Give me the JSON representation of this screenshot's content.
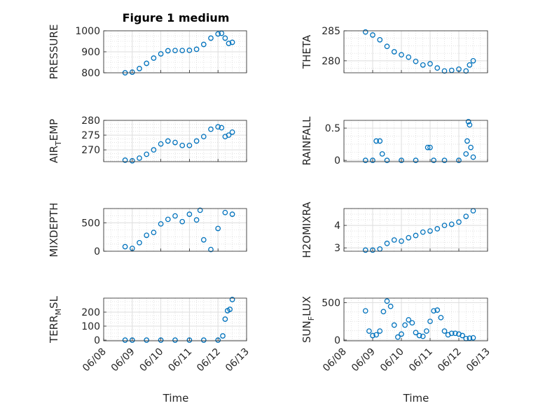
{
  "figure": {
    "title": "Figure 1 medium",
    "x_label_left": "Time",
    "x_label_right": "Time",
    "date_ticks": [
      "06/08",
      "06/09",
      "06/10",
      "06/11",
      "06/12",
      "06/13"
    ],
    "marker_color": "#0072BD",
    "grid": "on (major and minor)"
  },
  "chart_data": [
    {
      "type": "scatter",
      "id": "pressure",
      "ylabel": "PRESSURE",
      "ylabel_main": "PRESSURE",
      "ylabel_sub": "",
      "ylabel_tail": "",
      "ylim": [
        800,
        1000
      ],
      "yticks": [
        800,
        900,
        1000
      ],
      "xlim": [
        "06/08",
        "06/13"
      ],
      "x": [
        "06/08 18:00",
        "06/09 00:00",
        "06/09 06:00",
        "06/09 12:00",
        "06/09 18:00",
        "06/10 00:00",
        "06/10 06:00",
        "06/10 12:00",
        "06/10 18:00",
        "06/11 00:00",
        "06/11 06:00",
        "06/11 12:00",
        "06/11 18:00",
        "06/12 00:00",
        "06/12 03:00",
        "06/12 06:00",
        "06/12 09:00",
        "06/12 12:00"
      ],
      "y": [
        800,
        803,
        820,
        845,
        870,
        890,
        905,
        906,
        906,
        907,
        912,
        935,
        965,
        985,
        988,
        965,
        940,
        945
      ]
    },
    {
      "type": "scatter",
      "id": "theta",
      "ylabel": "THETA",
      "ylabel_main": "THETA",
      "ylabel_sub": "",
      "ylabel_tail": "",
      "ylim": [
        278,
        285
      ],
      "yticks": [
        280,
        285
      ],
      "xlim": [
        "06/08",
        "06/13"
      ],
      "x": [
        "06/08 18:00",
        "06/09 00:00",
        "06/09 06:00",
        "06/09 12:00",
        "06/09 18:00",
        "06/10 00:00",
        "06/10 06:00",
        "06/10 12:00",
        "06/10 18:00",
        "06/11 00:00",
        "06/11 06:00",
        "06/11 12:00",
        "06/11 18:00",
        "06/12 00:00",
        "06/12 06:00",
        "06/12 09:00",
        "06/12 12:00"
      ],
      "y": [
        284.8,
        284.3,
        283.5,
        282.4,
        281.5,
        281.0,
        280.6,
        279.9,
        279.3,
        279.5,
        278.8,
        278.3,
        278.4,
        278.6,
        278.3,
        279.3,
        280.0
      ]
    },
    {
      "type": "scatter",
      "id": "air-temp",
      "ylabel": "AIR_TEMP",
      "ylabel_main": "AIR",
      "ylabel_sub": "T",
      "ylabel_tail": "EMP",
      "ylim": [
        266,
        280
      ],
      "yticks": [
        270,
        275,
        280
      ],
      "xlim": [
        "06/08",
        "06/13"
      ],
      "x": [
        "06/08 18:00",
        "06/09 00:00",
        "06/09 06:00",
        "06/09 12:00",
        "06/09 18:00",
        "06/10 00:00",
        "06/10 06:00",
        "06/10 12:00",
        "06/10 18:00",
        "06/11 00:00",
        "06/11 06:00",
        "06/11 12:00",
        "06/11 18:00",
        "06/12 00:00",
        "06/12 03:00",
        "06/12 06:00",
        "06/12 09:00",
        "06/12 12:00"
      ],
      "y": [
        266.5,
        266.3,
        267.2,
        268.5,
        270.0,
        272.0,
        273.0,
        272.5,
        271.5,
        271.5,
        273.0,
        274.5,
        277.0,
        277.8,
        277.5,
        274.5,
        275.0,
        276.0
      ]
    },
    {
      "type": "scatter",
      "id": "rainfall",
      "ylabel": "RAINFALL",
      "ylabel_main": "RAINFALL",
      "ylabel_sub": "",
      "ylabel_tail": "",
      "ylim": [
        -0.02,
        0.62
      ],
      "yticks": [
        0,
        0.5
      ],
      "xlim": [
        "06/08",
        "06/13"
      ],
      "x": [
        "06/08 18:00",
        "06/09 00:00",
        "06/09 03:00",
        "06/09 06:00",
        "06/09 08:00",
        "06/09 12:00",
        "06/10 00:00",
        "06/10 12:00",
        "06/10 22:00",
        "06/11 00:00",
        "06/11 03:00",
        "06/11 12:00",
        "06/12 00:00",
        "06/12 06:00",
        "06/12 07:00",
        "06/12 08:00",
        "06/12 09:00",
        "06/12 10:00",
        "06/12 12:00"
      ],
      "y": [
        0,
        0,
        0.3,
        0.3,
        0.1,
        0,
        0,
        0,
        0.2,
        0.2,
        0,
        0,
        0,
        0.1,
        0.3,
        0.6,
        0.55,
        0.2,
        0.05
      ]
    },
    {
      "type": "scatter",
      "id": "mixdepth",
      "ylabel": "MIXDEPTH",
      "ylabel_main": "MIXDEPTH",
      "ylabel_sub": "",
      "ylabel_tail": "",
      "ylim": [
        0,
        750
      ],
      "yticks": [
        0,
        500
      ],
      "xlim": [
        "06/08",
        "06/13"
      ],
      "x": [
        "06/08 18:00",
        "06/09 00:00",
        "06/09 06:00",
        "06/09 12:00",
        "06/09 18:00",
        "06/10 00:00",
        "06/10 06:00",
        "06/10 12:00",
        "06/10 18:00",
        "06/11 00:00",
        "06/11 06:00",
        "06/11 09:00",
        "06/11 12:00",
        "06/11 18:00",
        "06/12 00:00",
        "06/12 06:00",
        "06/12 12:00"
      ],
      "y": [
        80,
        50,
        150,
        280,
        330,
        480,
        560,
        620,
        520,
        650,
        550,
        720,
        200,
        30,
        400,
        680,
        650
      ]
    },
    {
      "type": "scatter",
      "id": "h2omixra",
      "ylabel": "H2OMIXRA",
      "ylabel_main": "H2OMIXRA",
      "ylabel_sub": "",
      "ylabel_tail": "",
      "ylim": [
        2.85,
        4.75
      ],
      "yticks": [
        3,
        4
      ],
      "xlim": [
        "06/08",
        "06/13"
      ],
      "x": [
        "06/08 18:00",
        "06/09 00:00",
        "06/09 06:00",
        "06/09 12:00",
        "06/09 18:00",
        "06/10 00:00",
        "06/10 06:00",
        "06/10 12:00",
        "06/10 18:00",
        "06/11 00:00",
        "06/11 06:00",
        "06/11 12:00",
        "06/11 18:00",
        "06/12 00:00",
        "06/12 06:00",
        "06/12 12:00"
      ],
      "y": [
        2.9,
        2.9,
        2.95,
        3.2,
        3.35,
        3.3,
        3.45,
        3.55,
        3.7,
        3.75,
        3.85,
        4.0,
        4.05,
        4.15,
        4.4,
        4.65
      ]
    },
    {
      "type": "scatter",
      "id": "terr-msl",
      "ylabel": "TERR_MSL",
      "ylabel_main": "TERR",
      "ylabel_sub": "M",
      "ylabel_tail": "SL",
      "ylim": [
        -5,
        300
      ],
      "yticks": [
        0,
        100,
        200
      ],
      "xlim": [
        "06/08",
        "06/13"
      ],
      "x": [
        "06/08 18:00",
        "06/09 00:00",
        "06/09 12:00",
        "06/10 00:00",
        "06/10 12:00",
        "06/11 00:00",
        "06/11 12:00",
        "06/12 00:00",
        "06/12 04:00",
        "06/12 06:00",
        "06/12 08:00",
        "06/12 10:00",
        "06/12 12:00"
      ],
      "y": [
        0,
        0,
        0,
        0,
        0,
        0,
        0,
        0,
        30,
        150,
        210,
        220,
        290
      ]
    },
    {
      "type": "scatter",
      "id": "sun-flux",
      "ylabel": "SUN_FLUX",
      "ylabel_main": "SUN",
      "ylabel_sub": "F",
      "ylabel_tail": "LUX",
      "ylim": [
        -10,
        560
      ],
      "yticks": [
        0,
        500
      ],
      "xlim": [
        "06/08",
        "06/13"
      ],
      "x": [
        "06/08 18:00",
        "06/08 21:00",
        "06/09 00:00",
        "06/09 03:00",
        "06/09 06:00",
        "06/09 09:00",
        "06/09 12:00",
        "06/09 15:00",
        "06/09 18:00",
        "06/09 21:00",
        "06/10 00:00",
        "06/10 03:00",
        "06/10 06:00",
        "06/10 09:00",
        "06/10 12:00",
        "06/10 15:00",
        "06/10 18:00",
        "06/10 21:00",
        "06/11 00:00",
        "06/11 03:00",
        "06/11 06:00",
        "06/11 09:00",
        "06/11 12:00",
        "06/11 15:00",
        "06/11 18:00",
        "06/11 21:00",
        "06/12 00:00",
        "06/12 03:00",
        "06/12 06:00",
        "06/12 09:00",
        "06/12 12:00"
      ],
      "y": [
        390,
        120,
        60,
        70,
        120,
        380,
        520,
        450,
        200,
        40,
        80,
        200,
        270,
        230,
        100,
        60,
        50,
        120,
        250,
        390,
        400,
        300,
        120,
        70,
        90,
        90,
        80,
        60,
        20,
        25,
        30
      ]
    }
  ]
}
